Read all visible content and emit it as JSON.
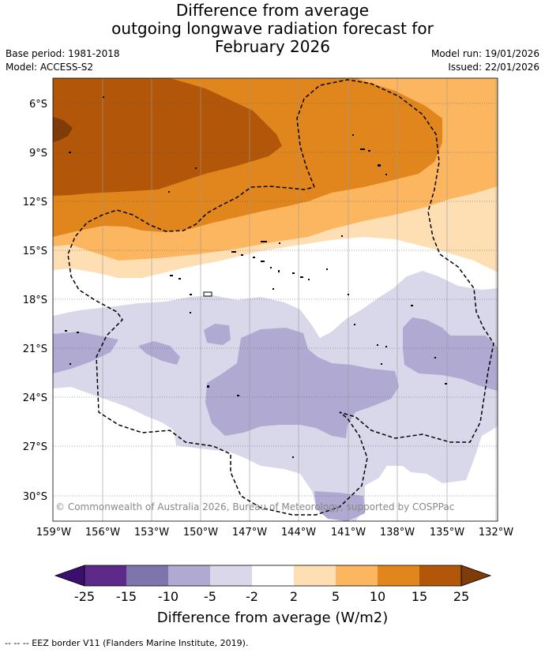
{
  "title": {
    "line1": "Difference from average",
    "line2": "outgoing longwave radiation forecast for",
    "line3": "February 2026"
  },
  "meta": {
    "base_period": "Base period: 1981-2018",
    "model": "Model: ACCESS-S2",
    "model_run": "Model run: 19/01/2026",
    "issued": "Issued: 22/01/2026"
  },
  "axes": {
    "lat_labels": [
      "6°S",
      "9°S",
      "12°S",
      "15°S",
      "18°S",
      "21°S",
      "24°S",
      "27°S",
      "30°S"
    ],
    "lon_labels": [
      "159°W",
      "156°W",
      "153°W",
      "150°W",
      "147°W",
      "144°W",
      "141°W",
      "138°W",
      "135°W",
      "132°W"
    ]
  },
  "copyright": "© Commonwealth of Australia 2026, Bureau of Meteorology, supported by COSPPac",
  "colorbar": {
    "ticks": [
      "-25",
      "-15",
      "-10",
      "-5",
      "-2",
      "2",
      "5",
      "10",
      "15",
      "25"
    ],
    "label": "Difference from average (W/m2)",
    "colors": [
      "#3b0f70",
      "#5e2a8a",
      "#8074ad",
      "#b0a9d2",
      "#d9d8ea",
      "#ffffff",
      "#fedfb4",
      "#fdb660",
      "#e1851d",
      "#b25709",
      "#7f3b08"
    ]
  },
  "footer": "-- -- -- EEZ border V11 (Flanders Marine Institute, 2019)."
}
